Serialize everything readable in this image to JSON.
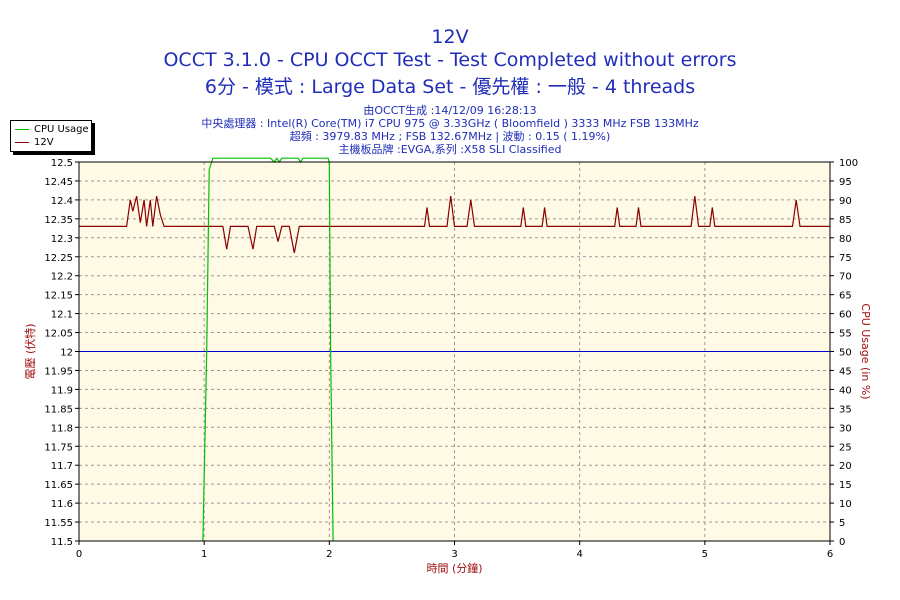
{
  "header": {
    "title": "12V",
    "subtitle1": "OCCT 3.1.0 - CPU OCCT Test - Test Completed without errors",
    "subtitle2": "6分 - 模式 : Large Data Set - 優先權 : 一般 - 4 threads",
    "info1": "由OCCT生成 :14/12/09 16:28:13",
    "info2": "中央處理器 : Intel(R) Core(TM) i7 CPU 975 @ 3.33GHz ( Bloomfield ) 3333 MHz FSB 133MHz",
    "info3": "超頻 : 3979.83 MHz ; FSB 132.67MHz | 波動 : 0.15 ( 1.19%)",
    "info4": "主機板品牌 :EVGA,系列 :X58 SLI Classified"
  },
  "legend": {
    "placement": "top-left",
    "items": [
      {
        "label": "CPU Usage",
        "color": "#00c000"
      },
      {
        "label": "12V",
        "color": "#8b0000"
      }
    ]
  },
  "colors": {
    "plot_bg": "#fefae6",
    "voltage_line": "#8b0000",
    "cpu_line": "#00c000",
    "reference_line": "#0000cc",
    "axis_label": "#a01010",
    "title": "#1f2db8"
  },
  "chart_data": {
    "type": "line",
    "title": "12V",
    "xlabel": "時間 (分鐘)",
    "ylabel": "電壓 (伏特)",
    "y2label": "CPU Usage (in %)",
    "xlim": [
      0,
      6
    ],
    "ylim": [
      11.5,
      12.5
    ],
    "y2lim": [
      0,
      100
    ],
    "grid": true,
    "x_ticks": [
      "0",
      "1",
      "2",
      "3",
      "4",
      "5",
      "6"
    ],
    "y_ticks": [
      "11.5",
      "11.55",
      "11.6",
      "11.65",
      "11.7",
      "11.75",
      "11.8",
      "11.85",
      "11.9",
      "11.95",
      "12",
      "12.05",
      "12.1",
      "12.15",
      "12.2",
      "12.25",
      "12.3",
      "12.35",
      "12.4",
      "12.45",
      "12.5"
    ],
    "y2_ticks": [
      "0",
      "5",
      "10",
      "15",
      "20",
      "25",
      "30",
      "35",
      "40",
      "45",
      "50",
      "55",
      "60",
      "65",
      "70",
      "75",
      "80",
      "85",
      "90",
      "95",
      "100"
    ],
    "reference_line": {
      "y": 12.0
    },
    "series": [
      {
        "name": "12V",
        "axis": "left",
        "baseline": 12.33,
        "x": [
          0,
          0.38,
          0.41,
          0.43,
          0.46,
          0.49,
          0.52,
          0.54,
          0.57,
          0.59,
          0.62,
          0.65,
          0.68,
          0.71,
          1.15,
          1.18,
          1.21,
          1.35,
          1.39,
          1.42,
          1.56,
          1.59,
          1.62,
          1.68,
          1.72,
          1.76,
          2.76,
          2.78,
          2.8,
          2.94,
          2.97,
          3.0,
          3.1,
          3.13,
          3.16,
          3.53,
          3.55,
          3.57,
          3.7,
          3.72,
          3.74,
          4.28,
          4.3,
          4.32,
          4.45,
          4.47,
          4.49,
          4.89,
          4.92,
          4.95,
          5.04,
          5.06,
          5.08,
          5.7,
          5.73,
          5.76,
          6
        ],
        "values": [
          12.33,
          12.33,
          12.4,
          12.37,
          12.41,
          12.34,
          12.4,
          12.33,
          12.4,
          12.33,
          12.41,
          12.36,
          12.33,
          12.33,
          12.33,
          12.27,
          12.33,
          12.33,
          12.27,
          12.33,
          12.33,
          12.29,
          12.33,
          12.33,
          12.26,
          12.33,
          12.33,
          12.38,
          12.33,
          12.33,
          12.41,
          12.33,
          12.33,
          12.4,
          12.33,
          12.33,
          12.38,
          12.33,
          12.33,
          12.38,
          12.33,
          12.33,
          12.38,
          12.33,
          12.33,
          12.38,
          12.33,
          12.33,
          12.41,
          12.33,
          12.33,
          12.38,
          12.33,
          12.33,
          12.4,
          12.33,
          12.33
        ]
      },
      {
        "name": "CPU Usage",
        "axis": "right",
        "x": [
          0.99,
          1.02,
          1.04,
          1.06,
          1.07,
          1.08,
          1.09,
          1.1,
          1.12,
          1.17,
          1.24,
          1.32,
          1.4,
          1.53,
          1.56,
          1.58,
          1.6,
          1.62,
          1.75,
          1.77,
          1.79,
          1.85,
          1.95,
          1.99,
          2.0,
          2.01,
          2.03
        ],
        "values": [
          0,
          50,
          98,
          100,
          101,
          101,
          101,
          101,
          101,
          101,
          101,
          101,
          101,
          101,
          100,
          101,
          100,
          101,
          101,
          100,
          101,
          101,
          101,
          101,
          100,
          50,
          0
        ]
      }
    ]
  }
}
